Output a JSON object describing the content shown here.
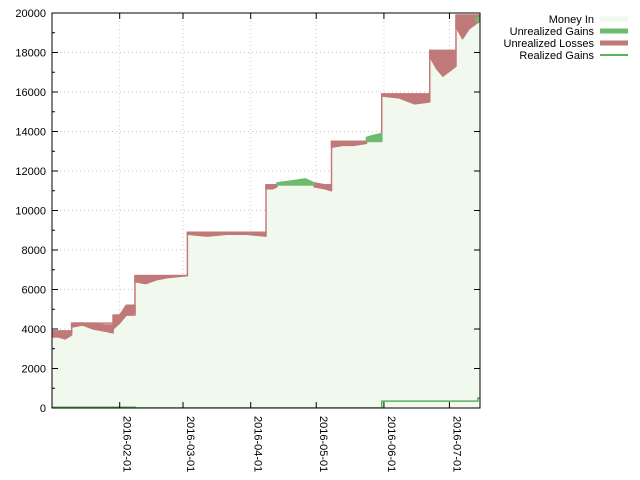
{
  "chart_data": {
    "type": "area",
    "x_type": "date",
    "xlim": [
      "2016-01-01",
      "2016-07-15"
    ],
    "ylim": [
      0,
      20000
    ],
    "y_ticks": [
      0,
      2000,
      4000,
      6000,
      8000,
      10000,
      12000,
      14000,
      16000,
      18000,
      20000
    ],
    "x_ticks": [
      "2016-02-01",
      "2016-03-01",
      "2016-04-01",
      "2016-05-01",
      "2016-06-01",
      "2016-07-01"
    ],
    "grid": true,
    "legend_position": "top-right (outside plot)",
    "legend": [
      "Money In",
      "Unrealized Gains",
      "Unrealized Losses",
      "Realized Gains"
    ],
    "colors": {
      "money_in_fill": "#f1f8ee",
      "money_in_line": "#c97a7a",
      "gains": "#6dbb6d",
      "losses": "#c07878",
      "realized": "#5cb05c",
      "grid": "#c8c8c8",
      "axis": "#000000"
    },
    "series": [
      {
        "name": "Money In",
        "kind": "step-area",
        "x": [
          "2016-01-01",
          "2016-01-10",
          "2016-01-29",
          "2016-02-08",
          "2016-03-03",
          "2016-04-08",
          "2016-05-08",
          "2016-05-31",
          "2016-06-22",
          "2016-07-04",
          "2016-07-15"
        ],
        "values": [
          3900,
          4300,
          4700,
          6700,
          8900,
          11300,
          13500,
          15900,
          18100,
          19600,
          19600
        ]
      },
      {
        "name": "Unrealized Losses",
        "kind": "band",
        "segments": [
          {
            "x": [
              "2016-01-01",
              "2016-01-04",
              "2016-01-07",
              "2016-01-10"
            ],
            "upper": [
              3900,
              3900,
              3900,
              3900
            ],
            "lower": [
              3600,
              3600,
              3500,
              3700
            ]
          },
          {
            "x": [
              "2016-01-10",
              "2016-01-15",
              "2016-01-20",
              "2016-01-25",
              "2016-01-29"
            ],
            "upper": [
              4300,
              4300,
              4300,
              4200,
              4200
            ],
            "lower": [
              4100,
              4200,
              4000,
              3900,
              3800
            ]
          },
          {
            "x": [
              "2016-01-29",
              "2016-02-01",
              "2016-02-04",
              "2016-02-08"
            ],
            "upper": [
              4700,
              4700,
              5200,
              5200
            ],
            "lower": [
              4000,
              4300,
              4700,
              4800
            ]
          },
          {
            "x": [
              "2016-02-08",
              "2016-02-13",
              "2016-02-18",
              "2016-02-23",
              "2016-03-03"
            ],
            "upper": [
              6700,
              6700,
              6700,
              6700,
              6700
            ],
            "lower": [
              6400,
              6300,
              6500,
              6600,
              6700
            ]
          },
          {
            "x": [
              "2016-03-03",
              "2016-03-12",
              "2016-03-21",
              "2016-03-30",
              "2016-04-08"
            ],
            "upper": [
              8900,
              8900,
              8900,
              8900,
              8900
            ],
            "lower": [
              8800,
              8700,
              8800,
              8800,
              8700
            ]
          },
          {
            "x": [
              "2016-04-08",
              "2016-04-11",
              "2016-04-13"
            ],
            "upper": [
              11300,
              11300,
              11300
            ],
            "lower": [
              11100,
              11100,
              11200
            ]
          },
          {
            "x": [
              "2016-04-30",
              "2016-05-05",
              "2016-05-08"
            ],
            "upper": [
              11400,
              11300,
              11300
            ],
            "lower": [
              11200,
              11100,
              11000
            ]
          },
          {
            "x": [
              "2016-05-08",
              "2016-05-13",
              "2016-05-18",
              "2016-05-24"
            ],
            "upper": [
              13500,
              13500,
              13500,
              13500
            ],
            "lower": [
              13200,
              13300,
              13300,
              13400
            ]
          },
          {
            "x": [
              "2016-05-31",
              "2016-06-08",
              "2016-06-15",
              "2016-06-22"
            ],
            "upper": [
              15900,
              15900,
              15900,
              15900
            ],
            "lower": [
              15800,
              15700,
              15400,
              15500
            ]
          },
          {
            "x": [
              "2016-06-22",
              "2016-06-25",
              "2016-06-28",
              "2016-07-04"
            ],
            "upper": [
              18100,
              18100,
              18100,
              18100
            ],
            "lower": [
              17800,
              17200,
              16800,
              17300
            ]
          },
          {
            "x": [
              "2016-07-04",
              "2016-07-07",
              "2016-07-10",
              "2016-07-15"
            ],
            "upper": [
              19900,
              19900,
              19900,
              19900
            ],
            "lower": [
              19300,
              18700,
              19200,
              19600
            ]
          }
        ]
      },
      {
        "name": "Unrealized Gains",
        "kind": "band",
        "segments": [
          {
            "x": [
              "2016-04-13",
              "2016-04-20",
              "2016-04-26",
              "2016-04-30"
            ],
            "upper": [
              11400,
              11500,
              11600,
              11400
            ],
            "lower": [
              11300,
              11300,
              11300,
              11300
            ]
          },
          {
            "x": [
              "2016-05-24",
              "2016-05-27",
              "2016-05-31"
            ],
            "upper": [
              13700,
              13800,
              13900
            ],
            "lower": [
              13500,
              13500,
              13500
            ]
          },
          {
            "x": [
              "2016-07-13",
              "2016-07-15"
            ],
            "upper": [
              19700,
              19800
            ],
            "lower": [
              19600,
              19600
            ]
          }
        ]
      },
      {
        "name": "Realized Gains",
        "kind": "step-line",
        "x": [
          "2016-01-01",
          "2016-02-08",
          "2016-05-31",
          "2016-07-14",
          "2016-07-15"
        ],
        "values": [
          40,
          0,
          350,
          500,
          500
        ]
      }
    ]
  }
}
